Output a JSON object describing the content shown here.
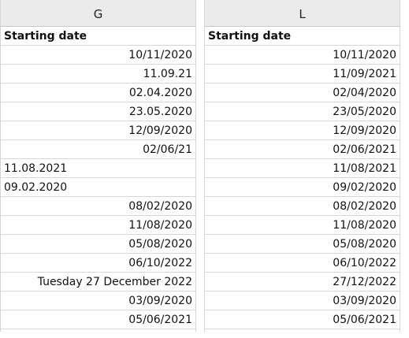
{
  "columns": [
    {
      "letter": "G",
      "header": "Starting date",
      "rows": [
        {
          "text": "10/11/2020",
          "align": "right"
        },
        {
          "text": "11.09.21",
          "align": "right"
        },
        {
          "text": "02.04.2020",
          "align": "right"
        },
        {
          "text": "23.05.2020",
          "align": "right"
        },
        {
          "text": "12/09/2020",
          "align": "right"
        },
        {
          "text": "02/06/21",
          "align": "right"
        },
        {
          "text": "11.08.2021",
          "align": "left"
        },
        {
          "text": "09.02.2020",
          "align": "left"
        },
        {
          "text": "08/02/2020",
          "align": "right"
        },
        {
          "text": "11/08/2020",
          "align": "right"
        },
        {
          "text": "05/08/2020",
          "align": "right"
        },
        {
          "text": "06/10/2022",
          "align": "right"
        },
        {
          "text": "Tuesday 27 December 2022",
          "align": "right"
        },
        {
          "text": "03/09/2020",
          "align": "right"
        },
        {
          "text": "05/06/2021",
          "align": "right"
        }
      ]
    },
    {
      "letter": "L",
      "header": "Starting date",
      "rows": [
        {
          "text": "10/11/2020",
          "align": "right"
        },
        {
          "text": "11/09/2021",
          "align": "right"
        },
        {
          "text": "02/04/2020",
          "align": "right"
        },
        {
          "text": "23/05/2020",
          "align": "right"
        },
        {
          "text": "12/09/2020",
          "align": "right"
        },
        {
          "text": "02/06/2021",
          "align": "right"
        },
        {
          "text": "11/08/2021",
          "align": "right"
        },
        {
          "text": "09/02/2020",
          "align": "right"
        },
        {
          "text": "08/02/2020",
          "align": "right"
        },
        {
          "text": "11/08/2020",
          "align": "right"
        },
        {
          "text": "05/08/2020",
          "align": "right"
        },
        {
          "text": "06/10/2022",
          "align": "right"
        },
        {
          "text": "27/12/2022",
          "align": "right"
        },
        {
          "text": "03/09/2020",
          "align": "right"
        },
        {
          "text": "05/06/2021",
          "align": "right"
        }
      ]
    }
  ]
}
